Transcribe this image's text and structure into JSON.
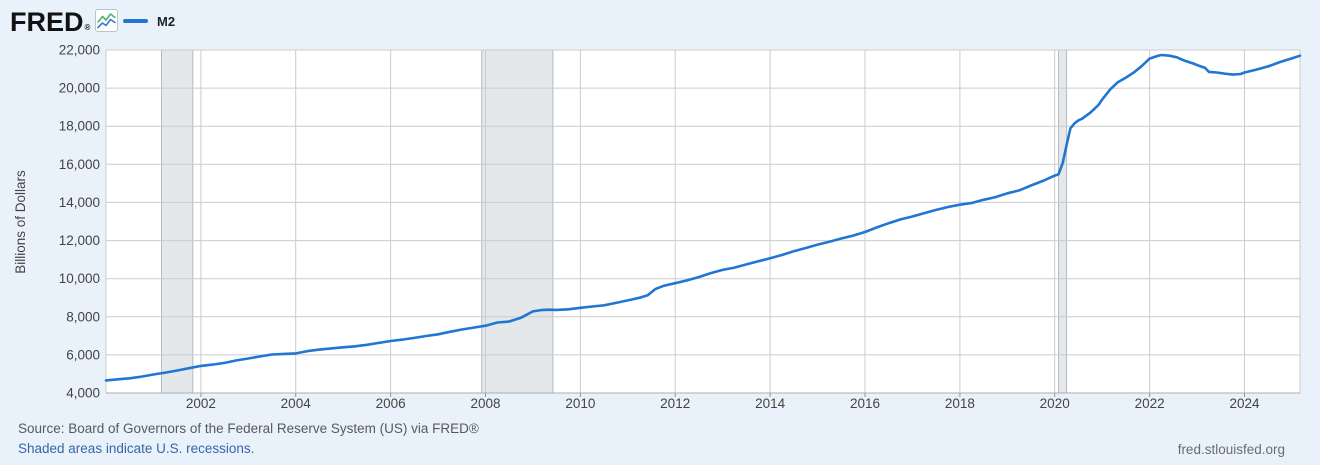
{
  "header": {
    "logo_text": "FRED",
    "logo_registered": "®"
  },
  "footer": {
    "source_line": "Source: Board of Governors of the Federal Reserve System (US) via FRED®",
    "recession_note": "Shaded areas indicate U.S. recessions.",
    "site_link": "fred.stlouisfed.org"
  },
  "colors": {
    "background": "#e9f2fb",
    "plot_background": "#ffffff",
    "gridline": "#cccccc",
    "axis_line": "#aaadb0",
    "tick_mark": "#8f9499",
    "axis_text": "#444444",
    "recession_band": "#e4e8eb",
    "recession_band_edge": "#b6bbbf",
    "series_line": "#2176d2"
  },
  "chart_data": {
    "type": "line",
    "title": "",
    "xlabel": "",
    "ylabel": "Billions of Dollars",
    "x_range": [
      2000.0,
      2025.17
    ],
    "y_range": [
      4000,
      22000
    ],
    "x_ticks": [
      2002,
      2004,
      2006,
      2008,
      2010,
      2012,
      2014,
      2016,
      2018,
      2020,
      2022,
      2024
    ],
    "y_ticks": [
      4000,
      6000,
      8000,
      10000,
      12000,
      14000,
      16000,
      18000,
      20000,
      22000
    ],
    "grid": true,
    "legend_position": "top-left",
    "recession_bands": [
      [
        2001.17,
        2001.83
      ],
      [
        2007.92,
        2009.42
      ],
      [
        2020.08,
        2020.25
      ]
    ],
    "series": [
      {
        "name": "M2",
        "units": "Billions of Dollars",
        "points": [
          [
            2000.0,
            4660
          ],
          [
            2000.25,
            4720
          ],
          [
            2000.5,
            4770
          ],
          [
            2000.75,
            4860
          ],
          [
            2001.0,
            4970
          ],
          [
            2001.25,
            5070
          ],
          [
            2001.5,
            5180
          ],
          [
            2001.75,
            5300
          ],
          [
            2002.0,
            5420
          ],
          [
            2002.25,
            5490
          ],
          [
            2002.5,
            5580
          ],
          [
            2002.75,
            5710
          ],
          [
            2003.0,
            5810
          ],
          [
            2003.25,
            5920
          ],
          [
            2003.5,
            6020
          ],
          [
            2003.75,
            6050
          ],
          [
            2004.0,
            6080
          ],
          [
            2004.25,
            6200
          ],
          [
            2004.5,
            6280
          ],
          [
            2004.75,
            6340
          ],
          [
            2005.0,
            6400
          ],
          [
            2005.25,
            6450
          ],
          [
            2005.5,
            6530
          ],
          [
            2005.75,
            6630
          ],
          [
            2006.0,
            6730
          ],
          [
            2006.25,
            6800
          ],
          [
            2006.5,
            6890
          ],
          [
            2006.75,
            6990
          ],
          [
            2007.0,
            7080
          ],
          [
            2007.25,
            7210
          ],
          [
            2007.5,
            7330
          ],
          [
            2007.75,
            7430
          ],
          [
            2008.0,
            7530
          ],
          [
            2008.25,
            7700
          ],
          [
            2008.5,
            7750
          ],
          [
            2008.75,
            7950
          ],
          [
            2009.0,
            8280
          ],
          [
            2009.17,
            8350
          ],
          [
            2009.33,
            8370
          ],
          [
            2009.5,
            8360
          ],
          [
            2009.75,
            8390
          ],
          [
            2010.0,
            8470
          ],
          [
            2010.25,
            8540
          ],
          [
            2010.5,
            8600
          ],
          [
            2010.75,
            8730
          ],
          [
            2011.0,
            8860
          ],
          [
            2011.25,
            9000
          ],
          [
            2011.42,
            9130
          ],
          [
            2011.58,
            9450
          ],
          [
            2011.75,
            9620
          ],
          [
            2012.0,
            9760
          ],
          [
            2012.25,
            9910
          ],
          [
            2012.5,
            10090
          ],
          [
            2012.75,
            10290
          ],
          [
            2013.0,
            10460
          ],
          [
            2013.25,
            10580
          ],
          [
            2013.5,
            10750
          ],
          [
            2013.75,
            10910
          ],
          [
            2014.0,
            11070
          ],
          [
            2014.25,
            11240
          ],
          [
            2014.5,
            11440
          ],
          [
            2014.75,
            11610
          ],
          [
            2015.0,
            11790
          ],
          [
            2015.25,
            11940
          ],
          [
            2015.5,
            12110
          ],
          [
            2015.75,
            12260
          ],
          [
            2016.0,
            12450
          ],
          [
            2016.25,
            12690
          ],
          [
            2016.5,
            12910
          ],
          [
            2016.75,
            13110
          ],
          [
            2017.0,
            13260
          ],
          [
            2017.25,
            13440
          ],
          [
            2017.5,
            13610
          ],
          [
            2017.75,
            13760
          ],
          [
            2018.0,
            13880
          ],
          [
            2018.25,
            13970
          ],
          [
            2018.5,
            14140
          ],
          [
            2018.75,
            14280
          ],
          [
            2019.0,
            14480
          ],
          [
            2019.25,
            14630
          ],
          [
            2019.5,
            14890
          ],
          [
            2019.75,
            15130
          ],
          [
            2020.0,
            15410
          ],
          [
            2020.08,
            15470
          ],
          [
            2020.17,
            16080
          ],
          [
            2020.25,
            17020
          ],
          [
            2020.33,
            17890
          ],
          [
            2020.42,
            18160
          ],
          [
            2020.5,
            18310
          ],
          [
            2020.58,
            18400
          ],
          [
            2020.75,
            18710
          ],
          [
            2020.92,
            19110
          ],
          [
            2021.0,
            19400
          ],
          [
            2021.17,
            19940
          ],
          [
            2021.33,
            20310
          ],
          [
            2021.5,
            20550
          ],
          [
            2021.67,
            20830
          ],
          [
            2021.83,
            21150
          ],
          [
            2022.0,
            21550
          ],
          [
            2022.17,
            21690
          ],
          [
            2022.25,
            21740
          ],
          [
            2022.42,
            21700
          ],
          [
            2022.58,
            21610
          ],
          [
            2022.75,
            21430
          ],
          [
            2022.92,
            21290
          ],
          [
            2023.0,
            21210
          ],
          [
            2023.17,
            21060
          ],
          [
            2023.25,
            20850
          ],
          [
            2023.42,
            20820
          ],
          [
            2023.58,
            20760
          ],
          [
            2023.75,
            20710
          ],
          [
            2023.92,
            20740
          ],
          [
            2024.0,
            20820
          ],
          [
            2024.25,
            20970
          ],
          [
            2024.5,
            21140
          ],
          [
            2024.75,
            21370
          ],
          [
            2025.0,
            21560
          ],
          [
            2025.17,
            21700
          ]
        ]
      }
    ]
  }
}
